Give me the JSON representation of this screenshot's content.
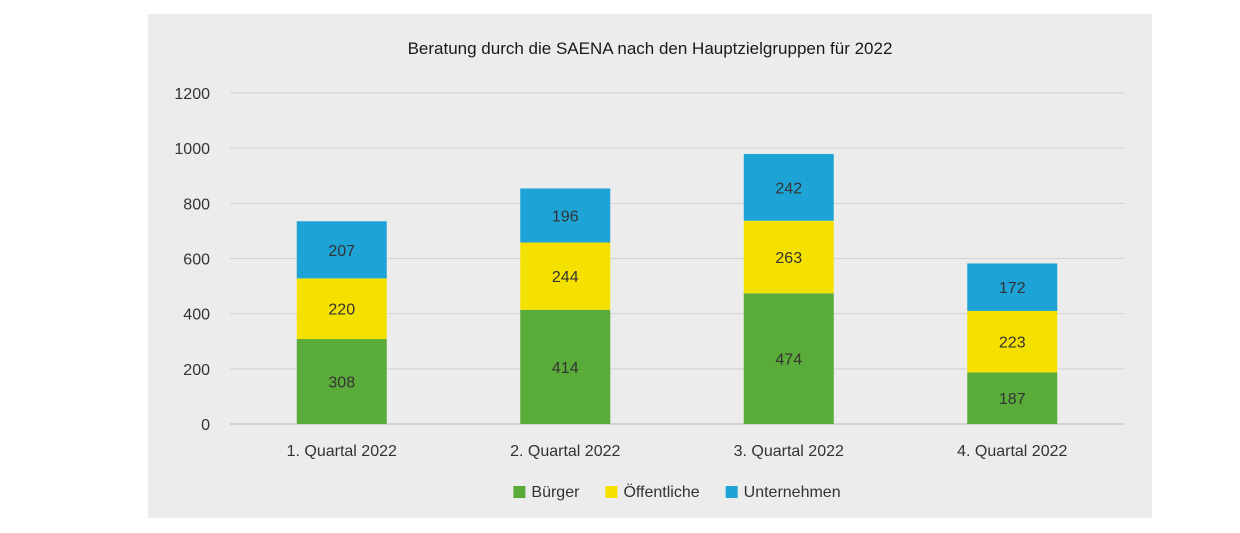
{
  "chart_data": {
    "type": "bar",
    "stacked": true,
    "title": "Beratung durch die SAENA nach den Hauptzielgruppen für 2022",
    "xlabel": "",
    "ylabel": "",
    "categories": [
      "1. Quartal 2022",
      "2. Quartal 2022",
      "3. Quartal 2022",
      "4. Quartal 2022"
    ],
    "series": [
      {
        "name": "Bürger",
        "values": [
          308,
          414,
          474,
          187
        ],
        "color": "#5aac3a"
      },
      {
        "name": "Öffentliche",
        "values": [
          220,
          244,
          263,
          223
        ],
        "color": "#f5e100"
      },
      {
        "name": "Unternehmen",
        "values": [
          207,
          196,
          242,
          172
        ],
        "color": "#1ea3d6"
      }
    ],
    "ylim": [
      0,
      1200
    ],
    "yticks": [
      0,
      200,
      400,
      600,
      800,
      1000,
      1200
    ],
    "grid": true,
    "legend": "bottom"
  }
}
